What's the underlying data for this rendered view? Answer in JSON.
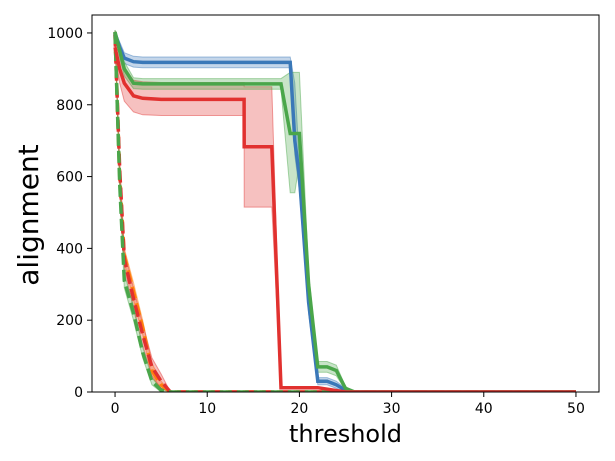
{
  "chart_data": {
    "type": "line",
    "title": "",
    "xlabel": "threshold",
    "ylabel": "alignment",
    "xlim": [
      -2.5,
      52.5
    ],
    "ylim": [
      0,
      1050
    ],
    "xticks": [
      0,
      10,
      20,
      30,
      40,
      50
    ],
    "yticks": [
      0,
      200,
      400,
      600,
      800,
      1000
    ],
    "grid": false,
    "legend": "none",
    "series": [
      {
        "color": "#3a78b8",
        "style": "solid",
        "x": [
          0,
          0.5,
          1,
          2,
          3,
          5,
          8,
          12,
          15,
          18,
          19,
          19.5,
          20,
          21,
          22,
          23,
          24,
          25,
          26,
          30,
          40,
          50
        ],
        "y": [
          1000,
          960,
          930,
          920,
          918,
          918,
          918,
          918,
          918,
          918,
          918,
          700,
          600,
          250,
          30,
          30,
          20,
          5,
          0,
          0,
          0,
          0
        ],
        "lower": [
          995,
          945,
          915,
          905,
          903,
          903,
          903,
          903,
          903,
          903,
          903,
          660,
          560,
          220,
          20,
          20,
          10,
          0,
          0,
          0,
          0,
          0
        ],
        "upper": [
          1005,
          975,
          945,
          935,
          933,
          933,
          933,
          933,
          933,
          933,
          933,
          860,
          640,
          280,
          40,
          40,
          30,
          10,
          0,
          0,
          0,
          0
        ]
      },
      {
        "color": "#e1312f",
        "style": "solid",
        "x": [
          0,
          0.5,
          1,
          2,
          3,
          5,
          8,
          12,
          14,
          14.01,
          17,
          17.01,
          18,
          18.01,
          22,
          25,
          30,
          40,
          50
        ],
        "y": [
          960,
          900,
          860,
          825,
          818,
          815,
          815,
          815,
          815,
          683,
          683,
          683,
          12,
          12,
          12,
          0,
          0,
          0,
          0
        ],
        "lower": [
          940,
          860,
          810,
          780,
          772,
          770,
          770,
          770,
          770,
          515,
          515,
          515,
          10,
          10,
          10,
          0,
          0,
          0,
          0
        ],
        "upper": [
          980,
          940,
          905,
          868,
          864,
          862,
          862,
          862,
          862,
          850,
          850,
          850,
          14,
          14,
          14,
          0,
          0,
          0,
          0
        ]
      },
      {
        "color": "#4aa64a",
        "style": "solid",
        "x": [
          0,
          0.5,
          1,
          2,
          3,
          5,
          8,
          12,
          16,
          18,
          19,
          19.5,
          20,
          21,
          22,
          23,
          24,
          25,
          26,
          30,
          40,
          50
        ],
        "y": [
          1003,
          950,
          900,
          860,
          858,
          858,
          858,
          858,
          858,
          858,
          720,
          720,
          720,
          300,
          70,
          70,
          60,
          10,
          0,
          0,
          0,
          0
        ],
        "lower": [
          998,
          930,
          880,
          845,
          843,
          843,
          843,
          843,
          843,
          843,
          555,
          555,
          640,
          270,
          55,
          55,
          45,
          5,
          0,
          0,
          0,
          0
        ],
        "upper": [
          1008,
          970,
          920,
          875,
          873,
          873,
          873,
          873,
          873,
          873,
          890,
          890,
          890,
          330,
          85,
          85,
          75,
          15,
          0,
          0,
          0,
          0
        ]
      },
      {
        "color": "#ff7f0e",
        "style": "dashed",
        "x": [
          0,
          0.5,
          1,
          2,
          3,
          4,
          5,
          6,
          8,
          10,
          20,
          30,
          50
        ],
        "y": [
          1000,
          600,
          380,
          280,
          180,
          60,
          20,
          0,
          0,
          0,
          0,
          0,
          0
        ],
        "lower": [
          995,
          580,
          360,
          255,
          160,
          40,
          10,
          0,
          0,
          0,
          0,
          0,
          0
        ],
        "upper": [
          1005,
          620,
          400,
          305,
          200,
          80,
          30,
          0,
          0,
          0,
          0,
          0,
          0
        ]
      },
      {
        "color": "#e1312f",
        "style": "dashed",
        "x": [
          0,
          0.5,
          1,
          2,
          3,
          4,
          5,
          6,
          8,
          10,
          20,
          30,
          50
        ],
        "y": [
          995,
          620,
          370,
          260,
          160,
          70,
          30,
          0,
          0,
          0,
          0,
          0,
          0
        ],
        "lower": [
          985,
          590,
          345,
          230,
          130,
          45,
          10,
          0,
          0,
          0,
          0,
          0,
          0
        ],
        "upper": [
          1005,
          650,
          395,
          290,
          190,
          95,
          50,
          0,
          0,
          0,
          0,
          0,
          0
        ]
      },
      {
        "color": "#4aa64a",
        "style": "dashed",
        "x": [
          0,
          0.5,
          1,
          2,
          3,
          4,
          5,
          6,
          8,
          10,
          20,
          30,
          50
        ],
        "y": [
          1003,
          580,
          310,
          220,
          110,
          30,
          5,
          0,
          0,
          0,
          0,
          0,
          0
        ],
        "lower": [
          998,
          560,
          290,
          200,
          95,
          20,
          0,
          0,
          0,
          0,
          0,
          0,
          0
        ],
        "upper": [
          1008,
          600,
          330,
          240,
          125,
          40,
          10,
          0,
          0,
          0,
          0,
          0,
          0
        ]
      }
    ]
  }
}
